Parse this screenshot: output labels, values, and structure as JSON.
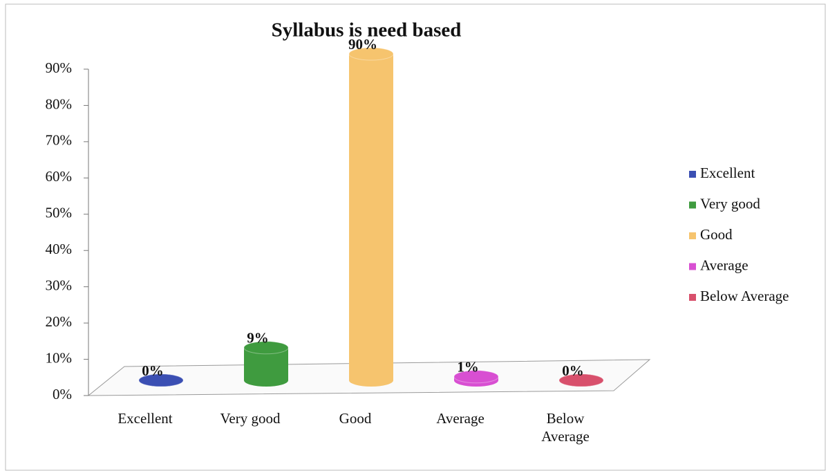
{
  "chart_data": {
    "type": "bar3d",
    "title": "Syllabus is need based",
    "categories": [
      "Excellent",
      "Very good",
      "Good",
      "Average",
      "Below Average"
    ],
    "values": [
      0,
      9,
      90,
      1,
      0
    ],
    "value_labels": [
      "0%",
      "9%",
      "90%",
      "1%",
      "0%"
    ],
    "colors": [
      "#3b4fb3",
      "#3f9b3f",
      "#f6c46e",
      "#d84fd2",
      "#d8506c"
    ],
    "ylim": [
      0,
      90
    ],
    "yticks": [
      {
        "value": 0,
        "label": "0%"
      },
      {
        "value": 10,
        "label": "10%"
      },
      {
        "value": 20,
        "label": "20%"
      },
      {
        "value": 30,
        "label": "30%"
      },
      {
        "value": 40,
        "label": "40%"
      },
      {
        "value": 50,
        "label": "50%"
      },
      {
        "value": 60,
        "label": "60%"
      },
      {
        "value": 70,
        "label": "70%"
      },
      {
        "value": 80,
        "label": "80%"
      },
      {
        "value": 90,
        "label": "90%"
      }
    ],
    "legend": "right"
  }
}
